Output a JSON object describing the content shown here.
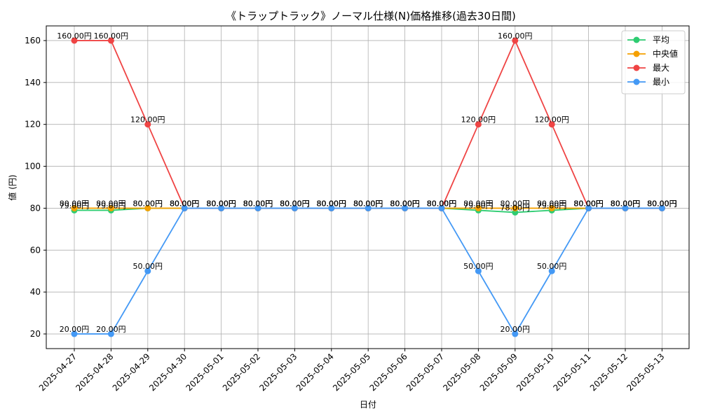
{
  "chart_data": {
    "type": "line",
    "title": "《トラップトラック》ノーマル仕様(N)価格推移(過去30日間)",
    "xlabel": "日付",
    "ylabel": "値 (円)",
    "ylim": [
      13,
      167
    ],
    "yticks": [
      20,
      40,
      60,
      80,
      100,
      120,
      140,
      160
    ],
    "grid": true,
    "legend_position": "top-right",
    "label_suffix": "円",
    "categories": [
      "2025-04-27",
      "2025-04-28",
      "2025-04-29",
      "2025-04-30",
      "2025-05-01",
      "2025-05-02",
      "2025-05-03",
      "2025-05-04",
      "2025-05-05",
      "2025-05-06",
      "2025-05-07",
      "2025-05-08",
      "2025-05-09",
      "2025-05-10",
      "2025-05-11",
      "2025-05-12",
      "2025-05-13"
    ],
    "series": [
      {
        "name": "平均",
        "color": "#2ecc71",
        "values": [
          79,
          79,
          80,
          80,
          80,
          80,
          80,
          80,
          80,
          80,
          80,
          79,
          78,
          79,
          80,
          80,
          80
        ]
      },
      {
        "name": "中央値",
        "color": "#f5a000",
        "values": [
          80,
          80,
          80,
          80,
          80,
          80,
          80,
          80,
          80,
          80,
          80,
          80,
          80,
          80,
          80,
          80,
          80
        ]
      },
      {
        "name": "最大",
        "color": "#ef4444",
        "values": [
          160,
          160,
          120,
          80,
          80,
          80,
          80,
          80,
          80,
          80,
          80,
          120,
          160,
          120,
          80,
          80,
          80
        ]
      },
      {
        "name": "最小",
        "color": "#4499f5",
        "values": [
          20,
          20,
          50,
          80,
          80,
          80,
          80,
          80,
          80,
          80,
          80,
          50,
          20,
          50,
          80,
          80,
          80
        ]
      }
    ]
  }
}
